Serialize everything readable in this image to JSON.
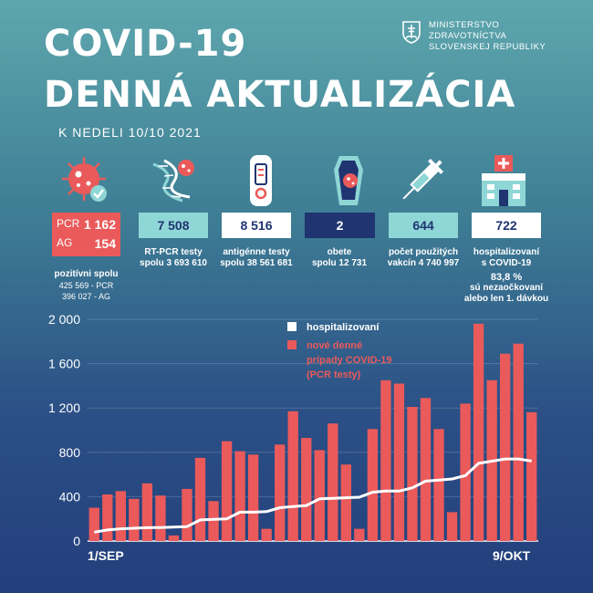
{
  "header": {
    "title_line1": "COVID-19",
    "title_line2": "DENNÁ AKTUALIZÁCIA",
    "date": "K NEDELI 10/10 2021",
    "ministry": [
      "MINISTERSTVO",
      "ZDRAVOTNÍCTVA",
      "SLOVENSKEJ REPUBLIKY"
    ]
  },
  "stats": {
    "positive": {
      "pcr_label": "PCR",
      "pcr_value": "1 162",
      "ag_label": "AG",
      "ag_value": "154",
      "caption": "pozitívni spolu",
      "detail1": "425 569 - PCR",
      "detail2": "396 027 - AG"
    },
    "rtpcr": {
      "value": "7 508",
      "caption": "RT-PCR testy",
      "detail": "spolu 3 693 610"
    },
    "antigen": {
      "value": "8 516",
      "caption": "antigénne testy",
      "detail": "spolu 38 561 681"
    },
    "deaths": {
      "value": "2",
      "caption": "obete",
      "detail": "spolu 12 731"
    },
    "vaccines": {
      "value": "644",
      "caption": "počet použitých",
      "detail": "vakcín 4 740 997"
    },
    "hospital": {
      "value": "722",
      "caption": "hospitalizovaní",
      "caption2": "s COVID-19",
      "pct": "83,8 %",
      "note1": "sú nezaočkovaní",
      "note2": "alebo len 1. dávkou"
    }
  },
  "colors": {
    "red": "#ea5a5a",
    "teal": "#8fd6d6",
    "white": "#ffffff",
    "navy": "#1f3470"
  },
  "chart_data": {
    "type": "bar",
    "title": "",
    "x_start_label": "1/SEP",
    "x_end_label": "9/OKT",
    "ylim": [
      0,
      2000
    ],
    "y_ticks": [
      0,
      400,
      800,
      1200,
      1600,
      2000
    ],
    "y_tick_labels": [
      "0",
      "400",
      "800",
      "1 200",
      "1 600",
      "2 000"
    ],
    "legend": [
      "hospitalizovaní",
      "nové denné",
      "prípady COVID-19",
      "(PCR testy)"
    ],
    "series": [
      {
        "name": "nové denné prípady COVID-19 (PCR testy)",
        "type": "bar",
        "values": [
          300,
          420,
          450,
          380,
          520,
          410,
          50,
          470,
          750,
          360,
          900,
          810,
          780,
          110,
          870,
          1170,
          930,
          820,
          1060,
          690,
          110,
          1010,
          1450,
          1420,
          1210,
          1290,
          1010,
          260,
          1240,
          1960,
          1450,
          1690,
          1780,
          1162
        ]
      },
      {
        "name": "hospitalizovaní",
        "type": "line",
        "values": [
          80,
          100,
          110,
          115,
          120,
          122,
          125,
          130,
          190,
          195,
          200,
          260,
          260,
          265,
          300,
          310,
          320,
          380,
          385,
          390,
          395,
          440,
          450,
          450,
          480,
          540,
          550,
          560,
          590,
          700,
          720,
          740,
          740,
          722
        ]
      }
    ]
  }
}
